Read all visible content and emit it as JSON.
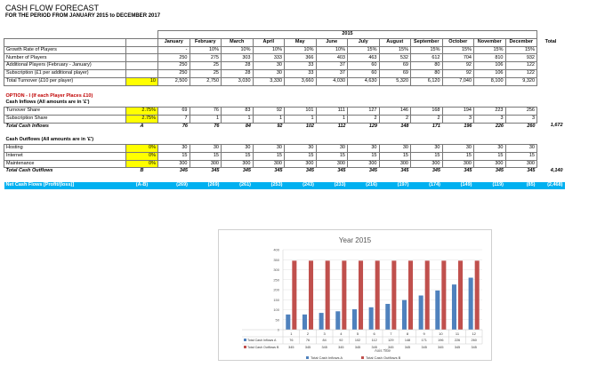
{
  "header": {
    "title": "CASH FLOW FORECAST",
    "subtitle": "FOR THE PERIOD FROM JANUARY 2015 to DECEMBER 2017"
  },
  "year_label": "2015",
  "months": [
    "January",
    "February",
    "March",
    "April",
    "May",
    "June",
    "July",
    "August",
    "September",
    "October",
    "November",
    "December"
  ],
  "total_label": "Total",
  "rows": {
    "growth": {
      "label": "Growth Rate of Players",
      "vals": [
        "-",
        "10%",
        "10%",
        "10%",
        "10%",
        "10%",
        "15%",
        "15%",
        "15%",
        "15%",
        "15%",
        "15%"
      ]
    },
    "players": {
      "label": "Number of Players",
      "vals": [
        "250",
        "275",
        "303",
        "333",
        "366",
        "403",
        "463",
        "532",
        "612",
        "704",
        "810",
        "932"
      ]
    },
    "additional": {
      "label": "Additional Players (February - January)",
      "vals": [
        "250",
        "25",
        "28",
        "30",
        "33",
        "37",
        "60",
        "69",
        "80",
        "92",
        "106",
        "122"
      ]
    },
    "subscription": {
      "label": "Subscription (£1 per additional player)",
      "vals": [
        "250",
        "25",
        "28",
        "30",
        "33",
        "37",
        "60",
        "69",
        "80",
        "92",
        "106",
        "122"
      ]
    },
    "turnover": {
      "label": "Total Turnover (£10 per player)",
      "input": "10",
      "vals": [
        "2,500",
        "2,750",
        "3,030",
        "3,330",
        "3,660",
        "4,030",
        "4,630",
        "5,320",
        "6,120",
        "7,040",
        "8,100",
        "9,320"
      ]
    },
    "option": {
      "label": "OPTION - I (If each Player Places £10)"
    },
    "inflows_head": {
      "label": "Cash Inflows (All amounts are in '£')"
    },
    "turnover_share": {
      "label": "Turnover Share",
      "input": "2.75%",
      "vals": [
        "69",
        "76",
        "83",
        "92",
        "101",
        "111",
        "127",
        "146",
        "168",
        "194",
        "223",
        "256"
      ]
    },
    "sub_share": {
      "label": "Subscription Share",
      "input": "2.75%",
      "vals": [
        "7",
        "1",
        "1",
        "1",
        "1",
        "1",
        "2",
        "2",
        "2",
        "3",
        "3",
        "3"
      ]
    },
    "total_inflows": {
      "label": "Total Cash Inflows",
      "code": "A",
      "vals": [
        "76",
        "76",
        "84",
        "92",
        "102",
        "112",
        "129",
        "148",
        "171",
        "196",
        "226",
        "260"
      ],
      "total": "1,672"
    },
    "outflows_head": {
      "label": "Cash Outflows (All amounts are in '£')"
    },
    "hosting": {
      "label": "Hosting",
      "input": "0%",
      "vals": [
        "30",
        "30",
        "30",
        "30",
        "30",
        "30",
        "30",
        "30",
        "30",
        "30",
        "30",
        "30"
      ]
    },
    "internet": {
      "label": "Internet",
      "input": "0%",
      "vals": [
        "15",
        "15",
        "15",
        "15",
        "15",
        "15",
        "15",
        "15",
        "15",
        "15",
        "15",
        "15"
      ]
    },
    "maintenance": {
      "label": "Maintenance",
      "input": "0%",
      "vals": [
        "300",
        "300",
        "300",
        "300",
        "300",
        "300",
        "300",
        "300",
        "300",
        "300",
        "300",
        "300"
      ]
    },
    "total_outflows": {
      "label": "Total Cash Outflows",
      "code": "B",
      "vals": [
        "345",
        "345",
        "345",
        "345",
        "345",
        "345",
        "345",
        "345",
        "345",
        "345",
        "345",
        "345"
      ],
      "total": "4,140"
    },
    "net": {
      "label": "Net Cash Flows [Profit/(loss)]",
      "code": "(A-B)",
      "vals": [
        "(269)",
        "(269)",
        "(261)",
        "(253)",
        "(243)",
        "(233)",
        "(216)",
        "(197)",
        "(174)",
        "(149)",
        "(119)",
        "(85)"
      ],
      "total": "(2,468)"
    }
  },
  "chart_data": {
    "type": "bar",
    "title": "Year 2015",
    "xlabel": "Axis Title",
    "ylabel": "",
    "categories": [
      "1",
      "2",
      "3",
      "4",
      "5",
      "6",
      "7",
      "8",
      "9",
      "10",
      "11",
      "12"
    ],
    "ylim": [
      0,
      400
    ],
    "yticks": [
      "0",
      "50",
      "100",
      "150",
      "200",
      "250",
      "300",
      "350",
      "400"
    ],
    "legend_position": "bottom",
    "series": [
      {
        "name": "Total Cash Inflows A",
        "color": "#4f81bd",
        "values": [
          76,
          76,
          84,
          92,
          102,
          112,
          129,
          148,
          171,
          196,
          226,
          260
        ]
      },
      {
        "name": "Total Cash Outflows B",
        "color": "#c0504d",
        "values": [
          345,
          345,
          345,
          345,
          345,
          345,
          345,
          345,
          345,
          345,
          345,
          345
        ]
      }
    ]
  }
}
